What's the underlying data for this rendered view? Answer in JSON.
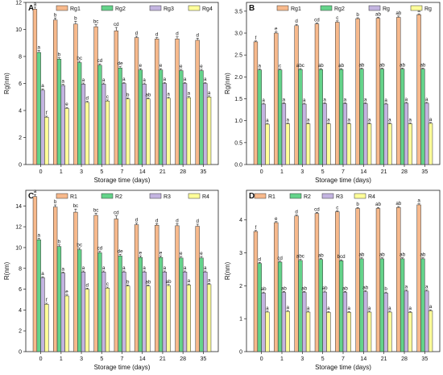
{
  "colors": {
    "s1": "#f7b98c",
    "s2": "#64d38a",
    "s3": "#c3b4e0",
    "s4": "#ffff9a"
  },
  "chart_data": [
    {
      "panel": "A",
      "type": "bar",
      "categories": [
        "0",
        "1",
        "3",
        "5",
        "7",
        "14",
        "21",
        "28",
        "35"
      ],
      "xlabel": "Storage time (days)",
      "ylabel": "Rg(nm)",
      "ylim": [
        0,
        12
      ],
      "yticks": [
        0,
        2,
        4,
        6,
        8,
        10,
        12
      ],
      "grid": false,
      "legend_position": "top",
      "series": [
        {
          "name": "Rg1",
          "values": [
            11.5,
            10.7,
            10.4,
            10.2,
            9.9,
            9.4,
            9.3,
            9.3,
            9.2
          ],
          "errors": [
            0.15,
            0.15,
            0.2,
            0.15,
            0.25,
            0.1,
            0.1,
            0.15,
            0.15
          ],
          "letters": [
            "a",
            "b",
            "b",
            "bc",
            "cd",
            "d",
            "d",
            "d",
            "d"
          ]
        },
        {
          "name": "Rg2",
          "values": [
            8.3,
            7.8,
            7.55,
            7.35,
            7.15,
            7.0,
            7.0,
            6.95,
            6.95
          ],
          "errors": [
            0.15,
            0.1,
            0.1,
            0.1,
            0.1,
            0.1,
            0.1,
            0.1,
            0.1
          ],
          "letters": [
            "a",
            "b",
            "bc",
            "cd",
            "de",
            "e",
            "e",
            "e",
            "e"
          ]
        },
        {
          "name": "Rg3",
          "values": [
            5.5,
            5.85,
            5.95,
            5.95,
            6.0,
            5.95,
            6.0,
            6.0,
            6.0
          ],
          "errors": [
            0.1,
            0.08,
            0.08,
            0.08,
            0.08,
            0.08,
            0.08,
            0.08,
            0.08
          ],
          "letters": [
            "a",
            "a",
            "a",
            "a",
            "a",
            "a",
            "a",
            "a",
            "a"
          ]
        },
        {
          "name": "Rg4",
          "values": [
            3.5,
            4.15,
            4.6,
            4.7,
            4.85,
            4.85,
            4.9,
            4.95,
            5.0
          ],
          "errors": [
            0.08,
            0.08,
            0.08,
            0.08,
            0.08,
            0.08,
            0.08,
            0.08,
            0.08
          ],
          "letters": [
            "f",
            "e",
            "d",
            "c",
            "b",
            "ab",
            "a",
            "a",
            "a"
          ]
        }
      ]
    },
    {
      "panel": "B",
      "type": "bar",
      "categories": [
        "0",
        "1",
        "3",
        "5",
        "7",
        "14",
        "21",
        "28",
        "35"
      ],
      "xlabel": "Storage time (days)",
      "ylabel": "Rg(nm)",
      "ylim": [
        0,
        3.7
      ],
      "yticks": [
        0.0,
        0.5,
        1.0,
        1.5,
        2.0,
        2.5,
        3.0,
        3.5
      ],
      "grid": false,
      "legend_position": "top",
      "series": [
        {
          "name": "Rg1",
          "values": [
            2.8,
            3.0,
            3.17,
            3.21,
            3.25,
            3.33,
            3.34,
            3.36,
            3.42
          ],
          "errors": [
            0.02,
            0.03,
            0.03,
            0.02,
            0.03,
            0.02,
            0.02,
            0.03,
            0.02
          ],
          "letters": [
            "f",
            "e",
            "d",
            "cd",
            "c",
            "b",
            "ab",
            "ab",
            "a"
          ]
        },
        {
          "name": "Rg2",
          "values": [
            2.16,
            2.16,
            2.17,
            2.17,
            2.17,
            2.18,
            2.18,
            2.18,
            2.18
          ],
          "errors": [
            0.02,
            0.02,
            0.02,
            0.02,
            0.02,
            0.02,
            0.02,
            0.02,
            0.02
          ],
          "letters": [
            "a",
            "c",
            "abc",
            "ab",
            "ab",
            "ab",
            "ab",
            "ab",
            "ab"
          ]
        },
        {
          "name": "Rg",
          "values": [
            1.38,
            1.39,
            1.38,
            1.39,
            1.39,
            1.39,
            1.38,
            1.4,
            1.4
          ],
          "errors": [
            0.02,
            0.02,
            0.02,
            0.02,
            0.02,
            0.02,
            0.02,
            0.02,
            0.02
          ],
          "letters": [
            "a",
            "a",
            "a",
            "a",
            "a",
            "a",
            "a",
            "a",
            "a"
          ]
        },
        {
          "name": "Rg",
          "values": [
            0.92,
            0.93,
            0.93,
            0.93,
            0.93,
            0.93,
            0.93,
            0.93,
            0.94
          ],
          "errors": [
            0.02,
            0.02,
            0.02,
            0.02,
            0.02,
            0.02,
            0.02,
            0.02,
            0.02
          ],
          "letters": [
            "a",
            "a",
            "a",
            "a",
            "a",
            "a",
            "a",
            "a",
            "a"
          ]
        }
      ]
    },
    {
      "panel": "C",
      "type": "bar",
      "categories": [
        "0",
        "1",
        "3",
        "5",
        "7",
        "14",
        "21",
        "28",
        "35"
      ],
      "xlabel": "Storage time (days)",
      "ylabel": "R(nm)",
      "ylim": [
        0,
        15.5
      ],
      "yticks": [
        0,
        2,
        4,
        6,
        8,
        10,
        12,
        14
      ],
      "grid": false,
      "legend_position": "top",
      "series": [
        {
          "name": "R1",
          "values": [
            14.9,
            13.9,
            13.4,
            13.1,
            12.75,
            12.2,
            12.15,
            12.1,
            12.05
          ],
          "errors": [
            0.2,
            0.2,
            0.3,
            0.2,
            0.3,
            0.15,
            0.15,
            0.2,
            0.2
          ],
          "letters": [
            "a",
            "b",
            "bc",
            "bc",
            "cd",
            "d",
            "d",
            "d",
            "d"
          ]
        },
        {
          "name": "R2",
          "values": [
            10.75,
            10.1,
            9.8,
            9.5,
            9.2,
            9.05,
            9.05,
            9.0,
            9.0
          ],
          "errors": [
            0.15,
            0.15,
            0.15,
            0.15,
            0.15,
            0.15,
            0.15,
            0.15,
            0.15
          ],
          "letters": [
            "a",
            "b",
            "bc",
            "cd",
            "de",
            "e",
            "e",
            "e",
            "e"
          ]
        },
        {
          "name": "R3",
          "values": [
            7.1,
            7.55,
            7.65,
            7.65,
            7.65,
            7.65,
            7.65,
            7.65,
            7.65
          ],
          "errors": [
            0.1,
            0.1,
            0.1,
            0.1,
            0.1,
            0.1,
            0.1,
            0.1,
            0.1
          ],
          "letters": [
            "a",
            "a",
            "a",
            "a",
            "a",
            "a",
            "a",
            "a",
            "a"
          ]
        },
        {
          "name": "R4",
          "values": [
            4.55,
            5.35,
            6.0,
            6.1,
            6.3,
            6.3,
            6.35,
            6.4,
            6.45
          ],
          "errors": [
            0.1,
            0.1,
            0.1,
            0.1,
            0.1,
            0.1,
            0.1,
            0.1,
            0.1
          ],
          "letters": [
            "f",
            "e",
            "d",
            "c",
            "b",
            "ab",
            "ab",
            "a",
            "a"
          ]
        }
      ]
    },
    {
      "panel": "D",
      "type": "bar",
      "categories": [
        "0",
        "1",
        "3",
        "5",
        "7",
        "14",
        "21",
        "28",
        "35"
      ],
      "xlabel": "Storage time (days)",
      "ylabel": "R(nm)",
      "ylim": [
        0,
        4.9
      ],
      "yticks": [
        0,
        1,
        2,
        3,
        4
      ],
      "grid": false,
      "legend_position": "top",
      "series": [
        {
          "name": "R1",
          "values": [
            3.65,
            3.92,
            4.12,
            4.2,
            4.25,
            4.35,
            4.35,
            4.38,
            4.46
          ],
          "errors": [
            0.03,
            0.03,
            0.03,
            0.03,
            0.03,
            0.03,
            0.03,
            0.03,
            0.03
          ],
          "letters": [
            "f",
            "e",
            "d",
            "cd",
            "c",
            "b",
            "ab",
            "ab",
            "a"
          ]
        },
        {
          "name": "R2",
          "values": [
            2.68,
            2.72,
            2.77,
            2.8,
            2.76,
            2.82,
            2.82,
            2.82,
            2.82
          ],
          "errors": [
            0.03,
            0.03,
            0.03,
            0.03,
            0.03,
            0.03,
            0.03,
            0.03,
            0.03
          ],
          "letters": [
            "d",
            "cd",
            "abc",
            "ab",
            "bcd",
            "ab",
            "ab",
            "ab",
            "ab"
          ]
        },
        {
          "name": "R3",
          "values": [
            1.78,
            1.8,
            1.8,
            1.81,
            1.8,
            1.82,
            1.78,
            1.84,
            1.84
          ],
          "errors": [
            0.03,
            0.03,
            0.03,
            0.03,
            0.03,
            0.03,
            0.03,
            0.03,
            0.03
          ],
          "letters": [
            "ab",
            "ab",
            "ab",
            "ab",
            "ab",
            "ab",
            "b",
            "a",
            "a"
          ]
        },
        {
          "name": "R4",
          "values": [
            1.2,
            1.22,
            1.2,
            1.19,
            1.19,
            1.2,
            1.2,
            1.19,
            1.24
          ],
          "errors": [
            0.03,
            0.03,
            0.03,
            0.03,
            0.03,
            0.03,
            0.03,
            0.03,
            0.03
          ],
          "letters": [
            "a",
            "a",
            "a",
            "a",
            "a",
            "a",
            "a",
            "a",
            "a"
          ]
        }
      ]
    }
  ]
}
